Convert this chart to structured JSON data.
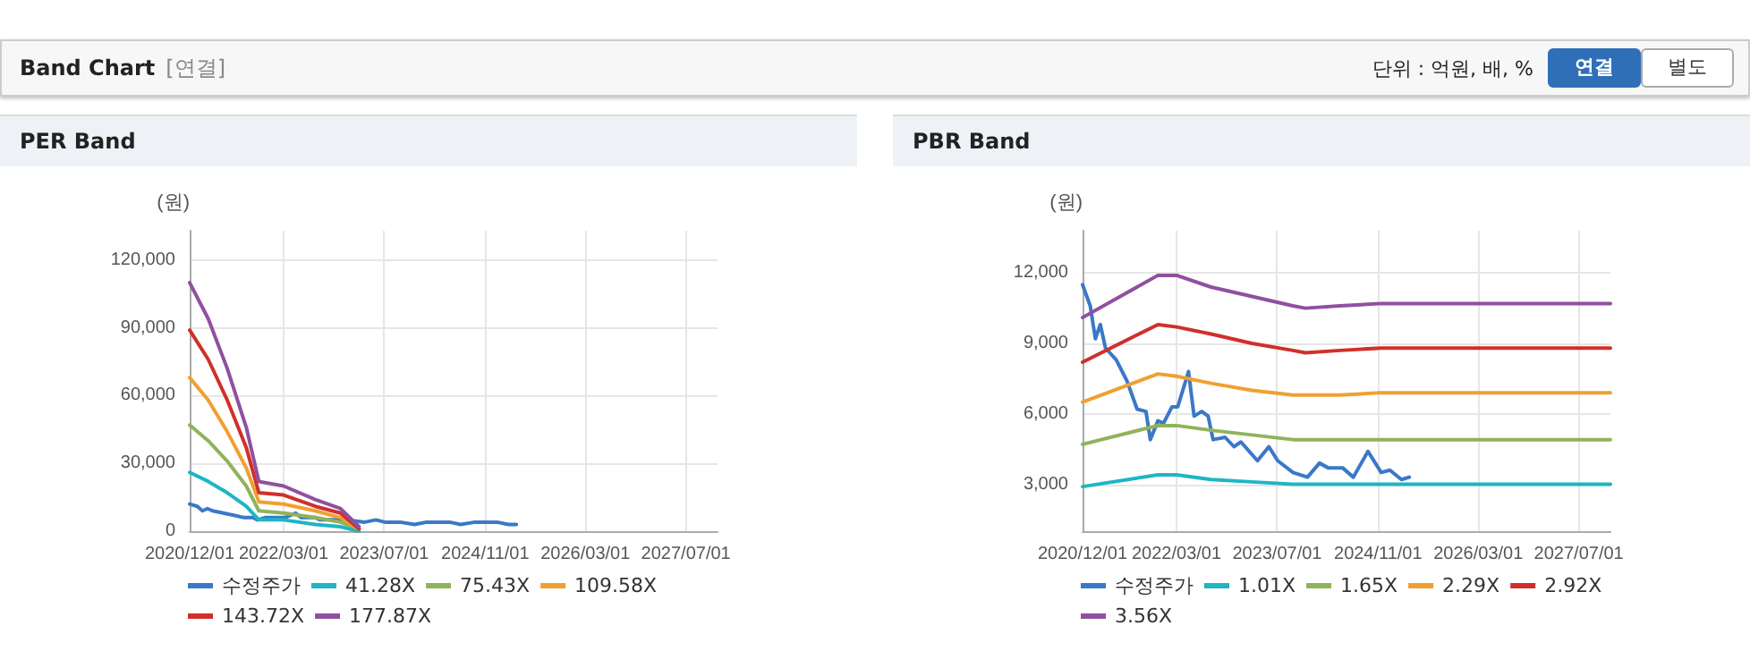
{
  "chart_data": [
    {
      "type": "other",
      "title": "Band Chart",
      "annotations": [
        "[연결]",
        "단위 : 억원, 배, %",
        "연결",
        "별도"
      ]
    },
    {
      "type": "line",
      "title": "PER Band",
      "ylabel": "(원)",
      "xlim": [
        "2020-12-01",
        "2027-12-01"
      ],
      "xticks": [
        {
          "value": "2020-12-01",
          "label": "2020/12/01"
        },
        {
          "value": "2022-03-01",
          "label": "2022/03/01"
        },
        {
          "value": "2023-07-01",
          "label": "2023/07/01"
        },
        {
          "value": "2024-11-01",
          "label": "2024/11/01"
        },
        {
          "value": "2026-03-01",
          "label": "2026/03/01"
        },
        {
          "value": "2027-07-01",
          "label": "2027/07/01"
        }
      ],
      "ylim": [
        0,
        133000
      ],
      "yticks": [
        0,
        {
          "value": 30000,
          "label": "30,000"
        },
        {
          "value": 60000,
          "label": "60,000"
        },
        {
          "value": 90000,
          "label": "90,000"
        },
        {
          "value": 120000,
          "label": "120,000"
        }
      ],
      "grid": true,
      "legend": "bottom",
      "marker": "none",
      "line_style": "solid",
      "series": [
        {
          "name": "수정주가",
          "color": "#3a78c8",
          "x": [
            "2020-12-01",
            "2021-01-07",
            "2021-02-01",
            "2021-02-25",
            "2021-03-22",
            "2021-05-13",
            "2021-07-04",
            "2021-08-22",
            "2021-10-04",
            "2021-10-25",
            "2021-12-01",
            "2021-12-28",
            "2022-02-07",
            "2022-03-07",
            "2022-04-28",
            "2022-05-25",
            "2022-07-01",
            "2022-08-01",
            "2022-08-25",
            "2022-10-22",
            "2022-12-04",
            "2023-01-07",
            "2023-03-28",
            "2023-05-22",
            "2023-07-04",
            "2023-09-16",
            "2023-11-25",
            "2024-01-22",
            "2024-03-04",
            "2024-05-13",
            "2024-07-04",
            "2024-09-13",
            "2024-11-16",
            "2024-12-28",
            "2025-02-22",
            "2025-04-01"
          ],
          "values": [
            12000,
            11000,
            9000,
            10000,
            9000,
            8000,
            7000,
            6000,
            6000,
            5000,
            6000,
            6000,
            6000,
            6000,
            8000,
            6000,
            6000,
            6000,
            5000,
            5000,
            5000,
            5000,
            4000,
            5000,
            4000,
            4000,
            3000,
            4000,
            4000,
            4000,
            3000,
            4000,
            4000,
            4000,
            3000,
            3000
          ]
        },
        {
          "name": "41.28X",
          "color": "#1fb5c4",
          "x": [
            "2020-12-01",
            "2021-03-01",
            "2021-06-01",
            "2021-09-01",
            "2021-11-01",
            "2022-03-01",
            "2022-08-01",
            "2022-12-01",
            "2023-03-01"
          ],
          "values": [
            26000,
            22000,
            17000,
            11000,
            5000,
            5000,
            3000,
            2000,
            0
          ]
        },
        {
          "name": "75.43X",
          "color": "#8fb35a",
          "x": [
            "2020-12-01",
            "2021-03-01",
            "2021-06-01",
            "2021-09-01",
            "2021-11-01",
            "2022-03-01",
            "2022-08-01",
            "2022-12-01",
            "2023-03-01"
          ],
          "values": [
            47000,
            40000,
            31000,
            20000,
            9000,
            8000,
            6000,
            4000,
            1000
          ]
        },
        {
          "name": "109.58X",
          "color": "#f0a030",
          "x": [
            "2020-12-01",
            "2021-03-01",
            "2021-06-01",
            "2021-09-01",
            "2021-11-01",
            "2022-03-01",
            "2022-08-01",
            "2022-12-01",
            "2023-03-01"
          ],
          "values": [
            68000,
            58000,
            44000,
            28000,
            13000,
            12000,
            9000,
            6000,
            1000
          ]
        },
        {
          "name": "143.72X",
          "color": "#d0302a",
          "x": [
            "2020-12-01",
            "2021-03-01",
            "2021-06-01",
            "2021-09-01",
            "2021-11-01",
            "2022-03-01",
            "2022-08-01",
            "2022-12-01",
            "2023-03-01"
          ],
          "values": [
            89000,
            76000,
            58000,
            37000,
            17000,
            16000,
            11000,
            8000,
            1000
          ]
        },
        {
          "name": "177.87X",
          "color": "#9050a0",
          "x": [
            "2020-12-01",
            "2021-03-01",
            "2021-06-01",
            "2021-09-01",
            "2021-11-01",
            "2022-03-01",
            "2022-08-01",
            "2022-12-01",
            "2023-03-01"
          ],
          "values": [
            110000,
            94000,
            72000,
            46000,
            22000,
            20000,
            14000,
            10000,
            2000
          ]
        }
      ]
    },
    {
      "type": "line",
      "title": "PBR Band",
      "ylabel": "(원)",
      "xlim": [
        "2020-12-01",
        "2027-12-01"
      ],
      "xticks": [
        {
          "value": "2020-12-01",
          "label": "2020/12/01"
        },
        {
          "value": "2022-03-01",
          "label": "2022/03/01"
        },
        {
          "value": "2023-07-01",
          "label": "2023/07/01"
        },
        {
          "value": "2024-11-01",
          "label": "2024/11/01"
        },
        {
          "value": "2026-03-01",
          "label": "2026/03/01"
        },
        {
          "value": "2027-07-01",
          "label": "2027/07/01"
        }
      ],
      "ylim": [
        1000,
        13800
      ],
      "yticks": [
        {
          "value": 3000,
          "label": "3,000"
        },
        {
          "value": 6000,
          "label": "6,000"
        },
        {
          "value": 9000,
          "label": "9,000"
        },
        {
          "value": 12000,
          "label": "12,000"
        }
      ],
      "grid": true,
      "legend": "bottom",
      "marker": "none",
      "line_style": "solid",
      "series": [
        {
          "name": "수정주가",
          "color": "#3a78c8",
          "x": [
            "2020-12-01",
            "2021-01-07",
            "2021-02-01",
            "2021-02-25",
            "2021-03-22",
            "2021-05-13",
            "2021-07-04",
            "2021-08-22",
            "2021-10-04",
            "2021-10-25",
            "2021-12-01",
            "2021-12-28",
            "2022-02-07",
            "2022-03-07",
            "2022-04-28",
            "2022-05-25",
            "2022-07-01",
            "2022-08-01",
            "2022-08-25",
            "2022-10-22",
            "2022-12-04",
            "2023-01-07",
            "2023-03-28",
            "2023-05-22",
            "2023-07-04",
            "2023-09-16",
            "2023-11-25",
            "2024-01-22",
            "2024-03-04",
            "2024-05-13",
            "2024-07-04",
            "2024-09-13",
            "2024-11-16",
            "2024-12-28",
            "2025-02-22",
            "2025-04-01"
          ],
          "values": [
            11500,
            10600,
            9200,
            9800,
            8800,
            8300,
            7400,
            6200,
            6100,
            4900,
            5700,
            5600,
            6300,
            6300,
            7800,
            5900,
            6100,
            5900,
            4900,
            5000,
            4600,
            4800,
            4000,
            4600,
            4000,
            3500,
            3300,
            3900,
            3700,
            3700,
            3300,
            4400,
            3500,
            3600,
            3200,
            3300
          ]
        },
        {
          "name": "1.01X",
          "color": "#1fb5c4",
          "x": [
            "2020-12-01",
            "2021-12-01",
            "2022-03-01",
            "2022-08-15",
            "2023-03-01",
            "2023-09-15",
            "2023-11-15",
            "2024-05-01",
            "2024-11-15",
            "2027-12-01"
          ],
          "values": [
            2900,
            3400,
            3400,
            3200,
            3100,
            3000,
            3000,
            3000,
            3000,
            3000
          ]
        },
        {
          "name": "1.65X",
          "color": "#8fb35a",
          "x": [
            "2020-12-01",
            "2021-12-01",
            "2022-03-01",
            "2022-08-15",
            "2023-03-01",
            "2023-09-15",
            "2023-11-15",
            "2024-05-01",
            "2024-11-15",
            "2027-12-01"
          ],
          "values": [
            4700,
            5500,
            5500,
            5300,
            5100,
            4900,
            4900,
            4900,
            4900,
            4900
          ]
        },
        {
          "name": "2.29X",
          "color": "#f0a030",
          "x": [
            "2020-12-01",
            "2021-12-01",
            "2022-03-01",
            "2022-08-15",
            "2023-03-01",
            "2023-09-15",
            "2023-11-15",
            "2024-05-01",
            "2024-11-15",
            "2027-12-01"
          ],
          "values": [
            6500,
            7700,
            7600,
            7300,
            7000,
            6800,
            6800,
            6800,
            6900,
            6900
          ]
        },
        {
          "name": "2.92X",
          "color": "#d0302a",
          "x": [
            "2020-12-01",
            "2021-12-01",
            "2022-03-01",
            "2022-08-15",
            "2023-03-01",
            "2023-09-15",
            "2023-11-15",
            "2024-05-01",
            "2024-11-15",
            "2027-12-01"
          ],
          "values": [
            8200,
            9800,
            9700,
            9400,
            9000,
            8700,
            8600,
            8700,
            8800,
            8800
          ]
        },
        {
          "name": "3.56X",
          "color": "#9050a0",
          "x": [
            "2020-12-01",
            "2021-12-01",
            "2022-03-01",
            "2022-08-15",
            "2023-03-01",
            "2023-09-15",
            "2023-11-15",
            "2024-05-01",
            "2024-11-15",
            "2027-12-01"
          ],
          "values": [
            10100,
            11900,
            11900,
            11400,
            11000,
            10600,
            10500,
            10600,
            10700,
            10700
          ]
        }
      ]
    }
  ]
}
